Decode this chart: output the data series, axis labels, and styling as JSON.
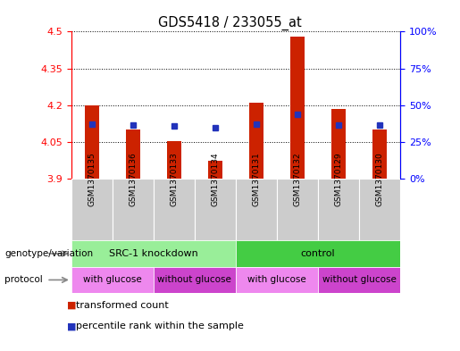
{
  "title": "GDS5418 / 233055_at",
  "samples": [
    "GSM1370135",
    "GSM1370136",
    "GSM1370133",
    "GSM1370134",
    "GSM1370131",
    "GSM1370132",
    "GSM1370129",
    "GSM1370130"
  ],
  "red_values": [
    4.2,
    4.1,
    4.055,
    3.975,
    4.21,
    4.48,
    4.185,
    4.1
  ],
  "blue_values": [
    4.125,
    4.12,
    4.115,
    4.11,
    4.125,
    4.165,
    4.12,
    4.12
  ],
  "y_min": 3.9,
  "y_max": 4.5,
  "y_ticks_left": [
    3.9,
    4.05,
    4.2,
    4.35,
    4.5
  ],
  "y_ticks_right_vals": [
    0,
    25,
    50,
    75,
    100
  ],
  "bar_color": "#cc2200",
  "blue_color": "#2233bb",
  "sample_bg_color": "#cccccc",
  "plot_bg": "#ffffff",
  "genotype_groups": [
    {
      "label": "SRC-1 knockdown",
      "start": 0,
      "end": 4,
      "color": "#99ee99"
    },
    {
      "label": "control",
      "start": 4,
      "end": 8,
      "color": "#44cc44"
    }
  ],
  "protocol_groups": [
    {
      "label": "with glucose",
      "start": 0,
      "end": 2,
      "color": "#ee88ee"
    },
    {
      "label": "without glucose",
      "start": 2,
      "end": 4,
      "color": "#cc44cc"
    },
    {
      "label": "with glucose",
      "start": 4,
      "end": 6,
      "color": "#ee88ee"
    },
    {
      "label": "without glucose",
      "start": 6,
      "end": 8,
      "color": "#cc44cc"
    }
  ],
  "legend_items": [
    {
      "label": "transformed count",
      "color": "#cc2200"
    },
    {
      "label": "percentile rank within the sample",
      "color": "#2233bb"
    }
  ],
  "genotype_label": "genotype/variation",
  "protocol_label": "protocol",
  "bar_width": 0.35,
  "base_value": 3.9
}
